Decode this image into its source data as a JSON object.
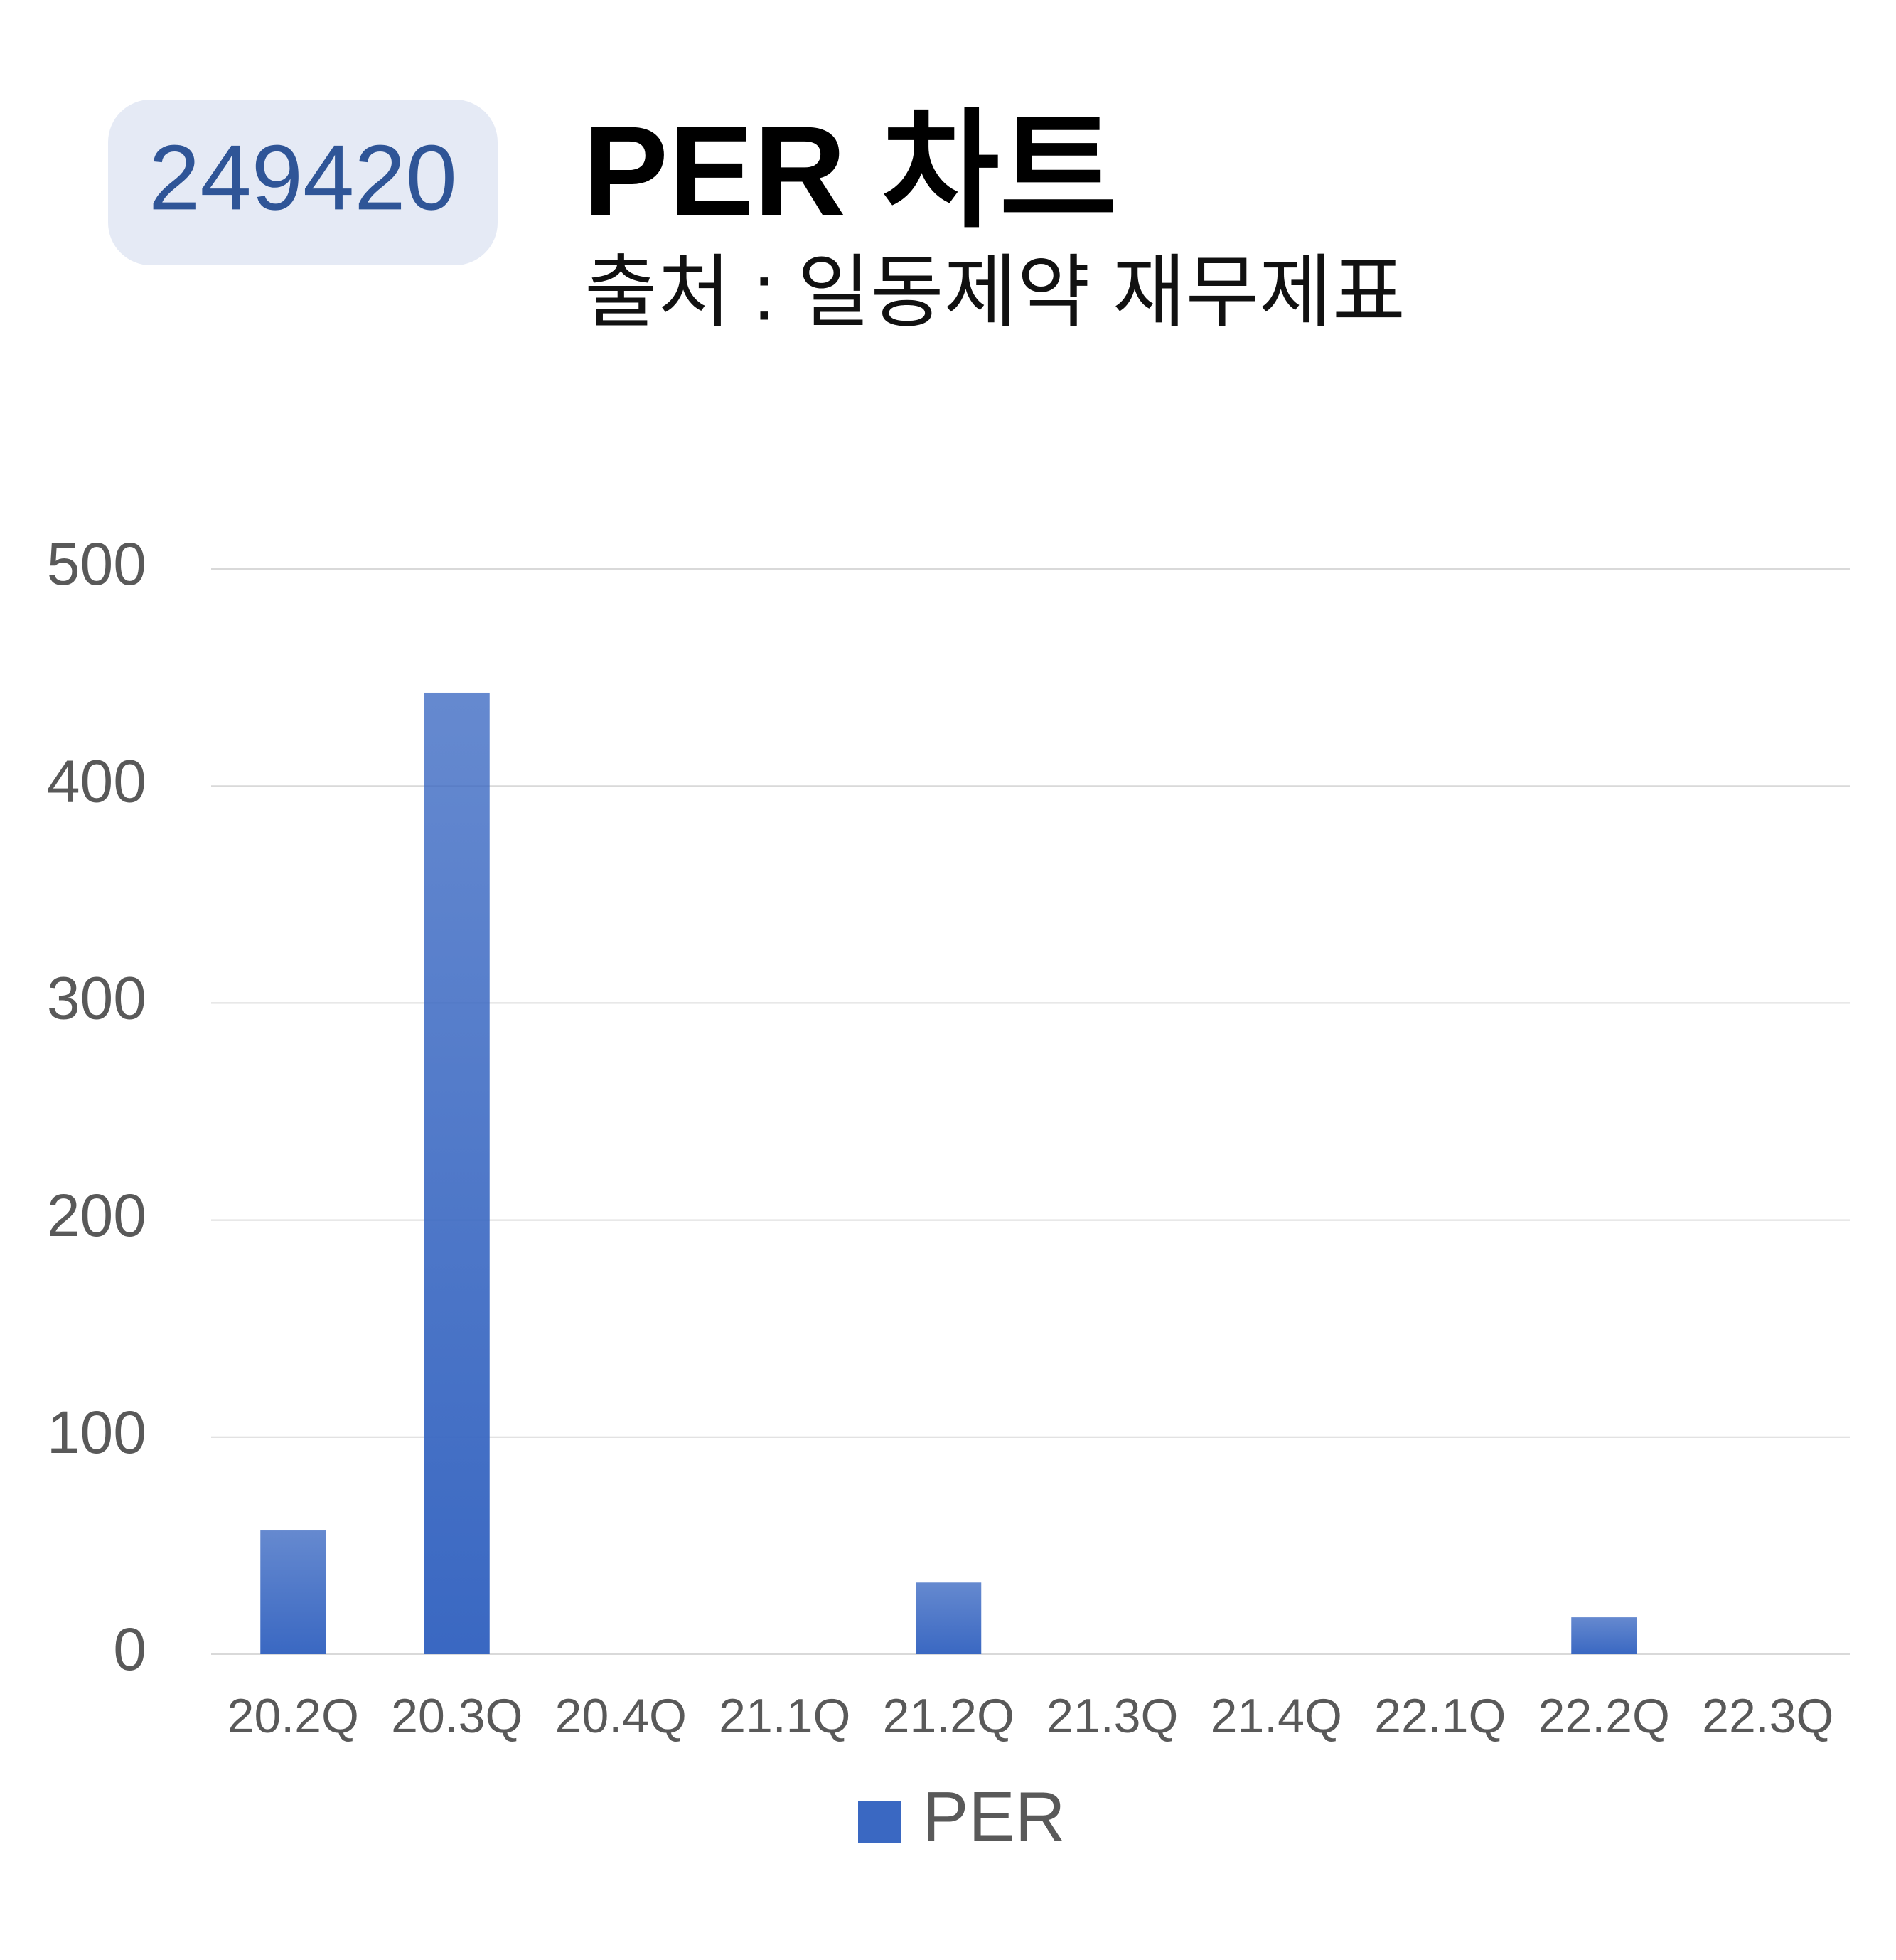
{
  "badge": "249420",
  "chart_data": {
    "type": "bar",
    "title": "PER 차트",
    "subtitle": "출처 : 일동제약 재무제표",
    "categories": [
      "20.2Q",
      "20.3Q",
      "20.4Q",
      "21.1Q",
      "21.2Q",
      "21.3Q",
      "21.4Q",
      "22.1Q",
      "22.2Q",
      "22.3Q"
    ],
    "series": [
      {
        "name": "PER",
        "color": "#3a68c2",
        "values": [
          57,
          443,
          null,
          null,
          33,
          null,
          null,
          null,
          17,
          null
        ]
      }
    ],
    "ylim": [
      0,
      500
    ],
    "yticks": [
      0,
      100,
      200,
      300,
      400,
      500
    ],
    "grid": true,
    "legend": "bottom"
  }
}
